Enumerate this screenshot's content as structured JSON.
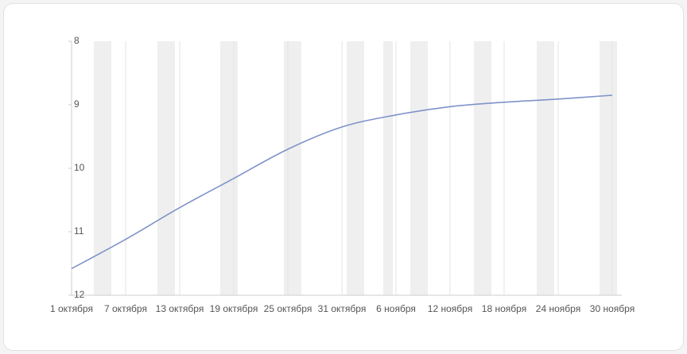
{
  "chart_data": {
    "type": "line",
    "x": [
      "1 октября",
      "7 октября",
      "13 октября",
      "19 октября",
      "25 октября",
      "31 октября",
      "6 ноября",
      "12 ноября",
      "18 ноября",
      "24 ноября",
      "30 ноября"
    ],
    "series": [
      {
        "color": "#7f93c9",
        "values": [
          11.58,
          11.12,
          10.62,
          10.16,
          9.7,
          9.35,
          9.16,
          9.03,
          8.96,
          8.91,
          8.85
        ]
      }
    ],
    "ylim": [
      12,
      8
    ],
    "yticks": [
      8,
      9,
      10,
      11,
      12
    ],
    "grid": true
  }
}
